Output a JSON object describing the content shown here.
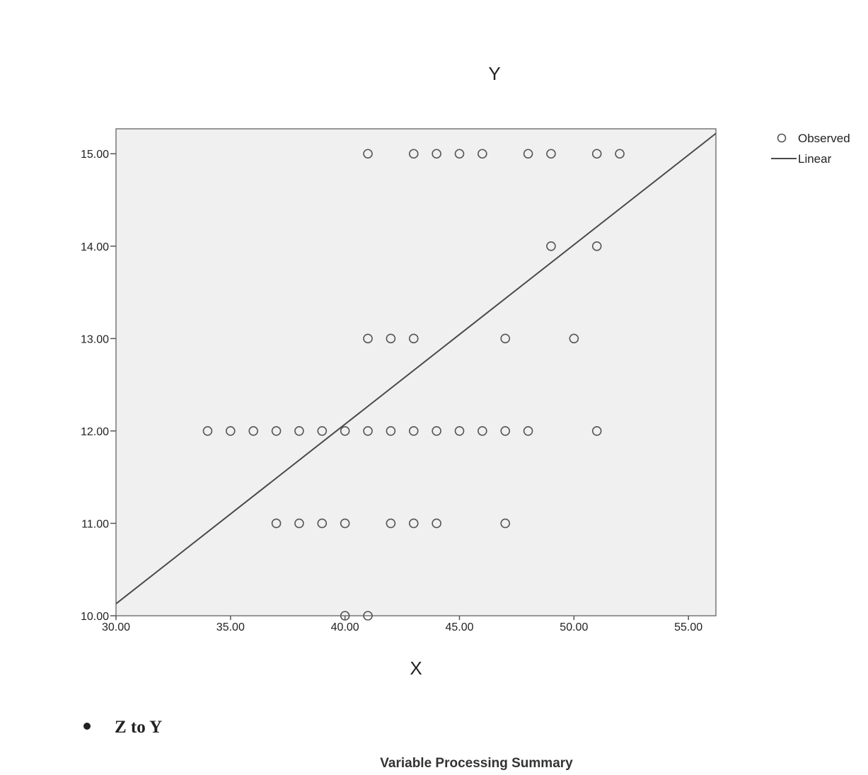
{
  "chart_data": {
    "type": "scatter",
    "title": "Y",
    "xlabel": "X",
    "ylabel": "",
    "xlim": [
      30,
      56.2
    ],
    "ylim": [
      10,
      15.27
    ],
    "x_ticks": [
      "30.00",
      "35.00",
      "40.00",
      "45.00",
      "50.00",
      "55.00"
    ],
    "y_ticks": [
      "10.00",
      "11.00",
      "12.00",
      "13.00",
      "14.00",
      "15.00"
    ],
    "series": [
      {
        "name": "Observed",
        "points": [
          [
            41,
            15
          ],
          [
            43,
            15
          ],
          [
            44,
            15
          ],
          [
            45,
            15
          ],
          [
            46,
            15
          ],
          [
            48,
            15
          ],
          [
            49,
            15
          ],
          [
            51,
            15
          ],
          [
            52,
            15
          ],
          [
            49,
            14
          ],
          [
            51,
            14
          ],
          [
            41,
            13
          ],
          [
            42,
            13
          ],
          [
            43,
            13
          ],
          [
            47,
            13
          ],
          [
            50,
            13
          ],
          [
            34,
            12
          ],
          [
            35,
            12
          ],
          [
            36,
            12
          ],
          [
            37,
            12
          ],
          [
            38,
            12
          ],
          [
            39,
            12
          ],
          [
            40,
            12
          ],
          [
            41,
            12
          ],
          [
            42,
            12
          ],
          [
            43,
            12
          ],
          [
            44,
            12
          ],
          [
            45,
            12
          ],
          [
            46,
            12
          ],
          [
            47,
            12
          ],
          [
            48,
            12
          ],
          [
            51,
            12
          ],
          [
            37,
            11
          ],
          [
            38,
            11
          ],
          [
            39,
            11
          ],
          [
            40,
            11
          ],
          [
            42,
            11
          ],
          [
            43,
            11
          ],
          [
            44,
            11
          ],
          [
            47,
            11
          ],
          [
            40,
            10
          ],
          [
            41,
            10
          ]
        ]
      },
      {
        "name": "Linear",
        "line": [
          [
            30,
            10.13
          ],
          [
            56.2,
            15.22
          ]
        ]
      }
    ],
    "legend": {
      "placement": "top-right",
      "entries": [
        "Observed",
        "Linear"
      ]
    },
    "grid": false,
    "colors": {
      "plot_bg": "#f0f0f0",
      "marker": "#555555",
      "line": "#4a4a4a"
    }
  },
  "page": {
    "bullet_text": "Z to Y",
    "subtitle": "Variable Processing Summary"
  }
}
